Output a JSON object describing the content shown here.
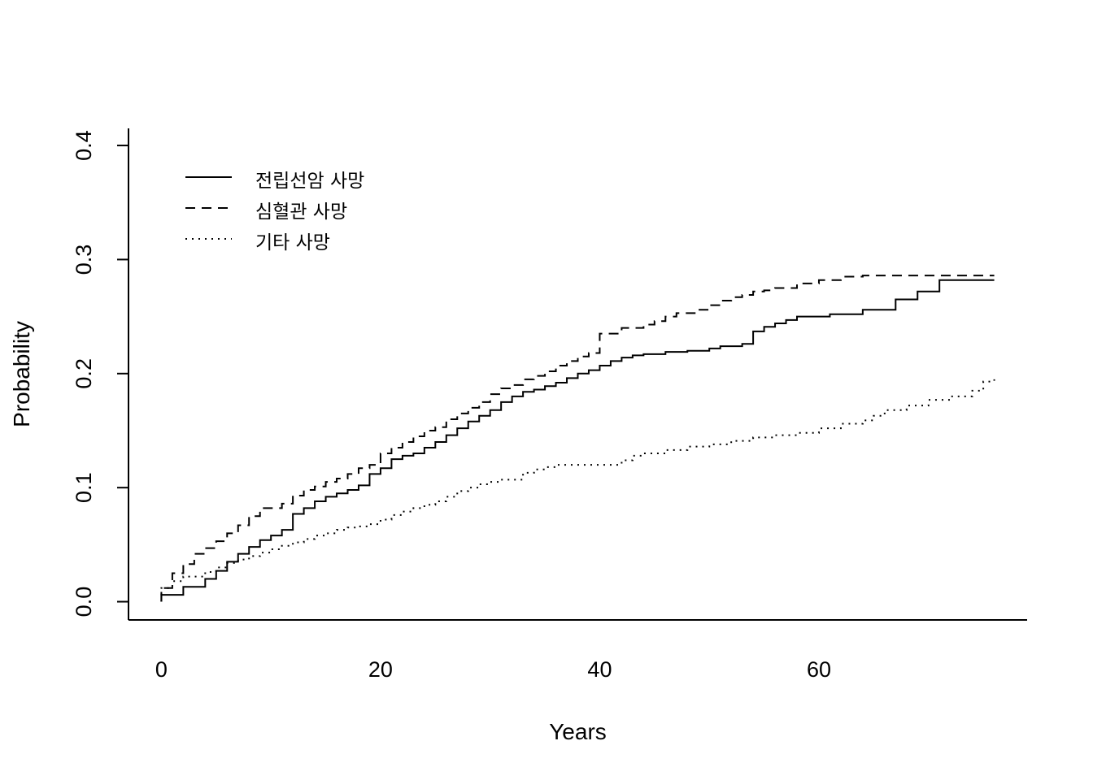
{
  "chart_data": {
    "type": "line",
    "xlabel": "Years",
    "ylabel": "Probability",
    "xlim": [
      -3,
      79
    ],
    "ylim": [
      -0.016,
      0.415
    ],
    "xticks": [
      0,
      20,
      40,
      60
    ],
    "yticks": [
      0.0,
      0.1,
      0.2,
      0.3,
      0.4
    ],
    "xtick_labels": [
      "0",
      "20",
      "40",
      "60"
    ],
    "ytick_labels": [
      "0.0",
      "0.1",
      "0.2",
      "0.3",
      "0.4"
    ],
    "step": true,
    "grid": false,
    "legend": {
      "position": "top-left",
      "frame": false
    },
    "series": [
      {
        "name": "전립선암 사망",
        "line_style": "solid",
        "color": "#000000",
        "x": [
          0,
          2,
          4,
          5,
          6,
          7,
          8,
          9,
          10,
          11,
          12,
          13,
          14,
          15,
          16,
          17,
          18,
          19,
          20,
          21,
          22,
          23,
          24,
          25,
          26,
          27,
          28,
          29,
          30,
          31,
          32,
          33,
          34,
          35,
          36,
          37,
          38,
          39,
          40,
          41,
          42,
          43,
          44,
          46,
          48,
          50,
          51,
          53,
          54,
          55,
          56,
          57,
          58,
          61,
          64,
          67,
          69,
          71,
          73,
          76
        ],
        "y": [
          0.006,
          0.013,
          0.02,
          0.027,
          0.035,
          0.042,
          0.048,
          0.054,
          0.058,
          0.063,
          0.077,
          0.082,
          0.088,
          0.092,
          0.095,
          0.098,
          0.102,
          0.112,
          0.117,
          0.125,
          0.128,
          0.13,
          0.135,
          0.14,
          0.146,
          0.152,
          0.158,
          0.163,
          0.168,
          0.175,
          0.18,
          0.184,
          0.186,
          0.189,
          0.192,
          0.196,
          0.2,
          0.203,
          0.207,
          0.211,
          0.214,
          0.216,
          0.217,
          0.219,
          0.22,
          0.222,
          0.224,
          0.226,
          0.237,
          0.241,
          0.244,
          0.247,
          0.25,
          0.252,
          0.256,
          0.265,
          0.272,
          0.282,
          0.282,
          0.282
        ]
      },
      {
        "name": "심혈관 사망",
        "line_style": "dashed",
        "color": "#000000",
        "x": [
          0,
          1,
          2,
          3,
          4,
          5,
          6,
          7,
          8,
          9,
          11,
          12,
          13,
          14,
          15,
          16,
          17,
          18,
          19,
          20,
          21,
          22,
          23,
          24,
          25,
          26,
          27,
          28,
          29,
          30,
          31,
          32,
          33,
          34,
          35,
          36,
          37,
          38,
          39,
          40,
          42,
          44,
          45,
          46,
          47,
          49,
          50,
          51,
          52,
          53,
          54,
          55,
          56,
          58,
          60,
          62,
          64,
          66,
          68,
          70,
          72,
          76
        ],
        "y": [
          0.012,
          0.025,
          0.033,
          0.042,
          0.047,
          0.053,
          0.06,
          0.067,
          0.075,
          0.082,
          0.086,
          0.093,
          0.098,
          0.101,
          0.105,
          0.108,
          0.112,
          0.117,
          0.12,
          0.13,
          0.135,
          0.14,
          0.145,
          0.15,
          0.153,
          0.16,
          0.165,
          0.17,
          0.175,
          0.182,
          0.187,
          0.19,
          0.195,
          0.198,
          0.202,
          0.207,
          0.211,
          0.215,
          0.218,
          0.235,
          0.24,
          0.243,
          0.246,
          0.25,
          0.253,
          0.256,
          0.26,
          0.264,
          0.267,
          0.269,
          0.272,
          0.273,
          0.275,
          0.279,
          0.282,
          0.285,
          0.286,
          0.286,
          0.286,
          0.286,
          0.286,
          0.286
        ]
      },
      {
        "name": "기타 사망",
        "line_style": "dotted",
        "color": "#000000",
        "x": [
          0,
          1,
          2,
          4,
          5,
          6,
          7,
          8,
          9,
          10,
          11,
          12,
          13,
          14,
          15,
          16,
          17,
          18,
          19,
          20,
          21,
          22,
          23,
          24,
          25,
          26,
          27,
          28,
          29,
          30,
          31,
          33,
          34,
          35,
          36,
          38,
          40,
          42,
          43,
          44,
          46,
          48,
          50,
          52,
          54,
          56,
          58,
          60,
          62,
          64,
          65,
          66,
          68,
          70,
          72,
          74,
          75,
          76
        ],
        "y": [
          0.012,
          0.018,
          0.022,
          0.026,
          0.03,
          0.034,
          0.037,
          0.04,
          0.043,
          0.046,
          0.049,
          0.052,
          0.055,
          0.058,
          0.06,
          0.063,
          0.065,
          0.066,
          0.068,
          0.072,
          0.076,
          0.079,
          0.082,
          0.085,
          0.088,
          0.092,
          0.097,
          0.1,
          0.103,
          0.105,
          0.107,
          0.113,
          0.116,
          0.118,
          0.12,
          0.12,
          0.12,
          0.124,
          0.128,
          0.13,
          0.133,
          0.136,
          0.138,
          0.141,
          0.144,
          0.146,
          0.148,
          0.152,
          0.156,
          0.159,
          0.163,
          0.168,
          0.172,
          0.177,
          0.18,
          0.185,
          0.193,
          0.195
        ]
      }
    ]
  }
}
